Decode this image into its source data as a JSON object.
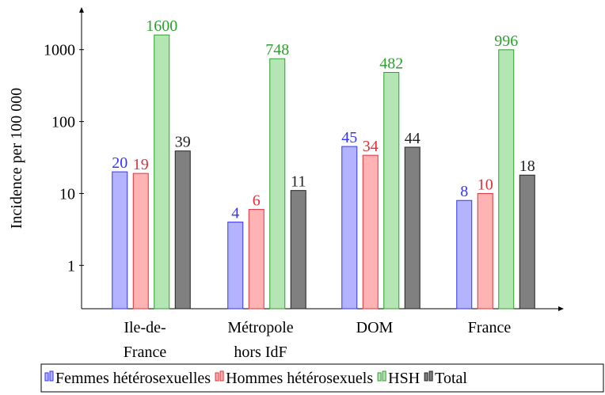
{
  "chart_data": {
    "type": "bar",
    "log_scale": true,
    "ylabel": "Incidence per 100 000",
    "categories": [
      [
        "Ile-de-",
        "France"
      ],
      [
        "Métropole",
        "hors IdF"
      ],
      [
        "DOM"
      ],
      [
        "France"
      ]
    ],
    "ylim": [
      0.25,
      4000
    ],
    "yticks": [
      1,
      10,
      100,
      1000
    ],
    "series": [
      {
        "name": "Femmes hétérosexuelles",
        "color": "#3333ff",
        "fill": "#b3b3ff",
        "values": [
          20,
          4,
          45,
          8
        ]
      },
      {
        "name": "Hommes hétérosexuels",
        "color": "#e0303a",
        "fill": "#ffb3b3",
        "values": [
          19,
          6,
          34,
          10
        ]
      },
      {
        "name": "HSH",
        "color": "#2ca02c",
        "fill": "#b3e6b3",
        "values": [
          1600,
          748,
          482,
          996
        ]
      },
      {
        "name": "Total",
        "color": "#222222",
        "fill": "#808080",
        "values": [
          39,
          11,
          44,
          18
        ]
      }
    ],
    "legend": "bottom"
  }
}
